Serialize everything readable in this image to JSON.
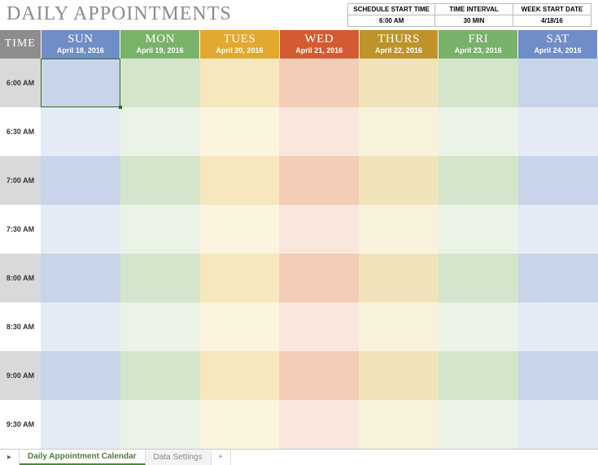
{
  "title": "DAILY APPOINTMENTS",
  "settings": {
    "headers": [
      "SCHEDULE START TIME",
      "TIME INTERVAL",
      "WEEK START DATE"
    ],
    "values": [
      "6:00 AM",
      "30 MIN",
      "4/18/16"
    ]
  },
  "time_header": "TIME",
  "days": [
    {
      "dow": "SUN",
      "date": "April 18, 2016",
      "bg": "#6f8dc7"
    },
    {
      "dow": "MON",
      "date": "April 19, 2016",
      "bg": "#79b36a"
    },
    {
      "dow": "TUES",
      "date": "April 20, 2016",
      "bg": "#e2a82f"
    },
    {
      "dow": "WED",
      "date": "April 21, 2016",
      "bg": "#d35a31"
    },
    {
      "dow": "THURS",
      "date": "April 22, 2016",
      "bg": "#be942a"
    },
    {
      "dow": "FRI",
      "date": "April 23, 2016",
      "bg": "#78b169"
    },
    {
      "dow": "SAT",
      "date": "April 24, 2016",
      "bg": "#6f8dc7"
    }
  ],
  "times": [
    "6:00 AM",
    "6:30 AM",
    "7:00 AM",
    "7:30 AM",
    "8:00 AM",
    "8:30 AM",
    "9:00 AM",
    "9:30 AM"
  ],
  "colors": {
    "time_header_bg": "#8d8d8d",
    "time_col_dark": "#d9d9d9",
    "time_col_light": "#ffffff",
    "day_dark": [
      "#c8d4ea",
      "#d3e5cb",
      "#f6e7bd",
      "#f3cdb6",
      "#f1e3b9",
      "#d3e5cb",
      "#c8d4ea"
    ],
    "day_light": [
      "#e5ebf5",
      "#eaf3e6",
      "#fbf4df",
      "#f9e7db",
      "#f8f1dc",
      "#eaf3e6",
      "#e5ebf5"
    ]
  },
  "selected_cell": {
    "row": 0,
    "col": 0
  },
  "tabs": {
    "active": "Daily Appointment Calendar",
    "items": [
      "Daily Appointment Calendar",
      "Data Settings"
    ]
  }
}
